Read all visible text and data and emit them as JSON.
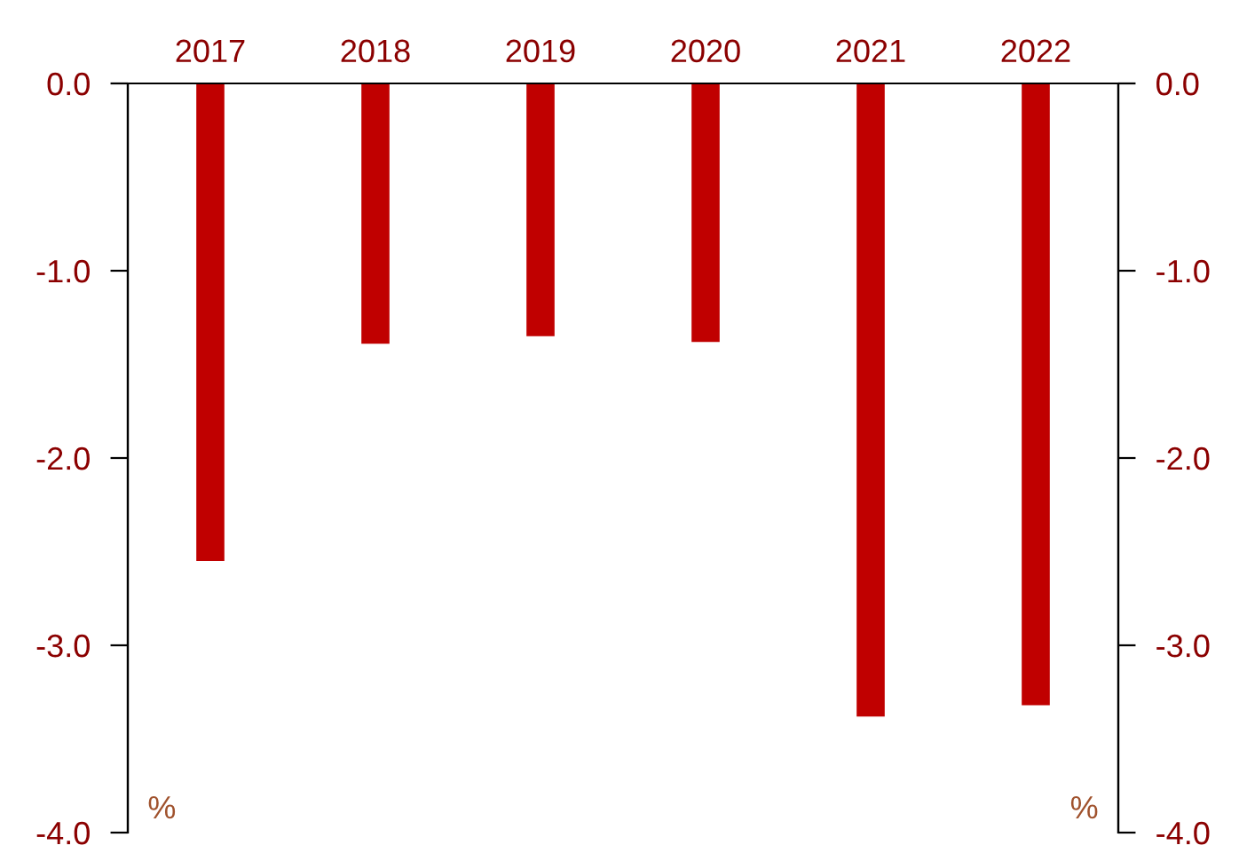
{
  "chart_data": {
    "type": "bar",
    "categories": [
      "2017",
      "2018",
      "2019",
      "2020",
      "2021",
      "2022"
    ],
    "series": [
      {
        "color": "#c00000",
        "values": [
          -2.55,
          -1.39,
          -1.35,
          -1.38,
          -3.38,
          -3.32
        ]
      }
    ],
    "ylim": [
      -4,
      0
    ],
    "yticks": [
      {
        "value": -4,
        "label": "-4.0"
      },
      {
        "value": -3,
        "label": "-3.0"
      },
      {
        "value": -2,
        "label": "-2.0"
      },
      {
        "value": -1,
        "label": "-1.0"
      },
      {
        "value": 0,
        "label": "0.0"
      }
    ],
    "y2lim": [
      -4,
      0
    ],
    "y2ticks": [
      {
        "value": -4,
        "label": "-4.0"
      },
      {
        "value": -3,
        "label": "-3.0"
      },
      {
        "value": -2,
        "label": "-2.0"
      },
      {
        "value": -1,
        "label": "-1.0"
      },
      {
        "value": 0,
        "label": "0.0"
      }
    ],
    "annotations": [
      "%",
      "%"
    ],
    "grid": false,
    "legend": false
  }
}
